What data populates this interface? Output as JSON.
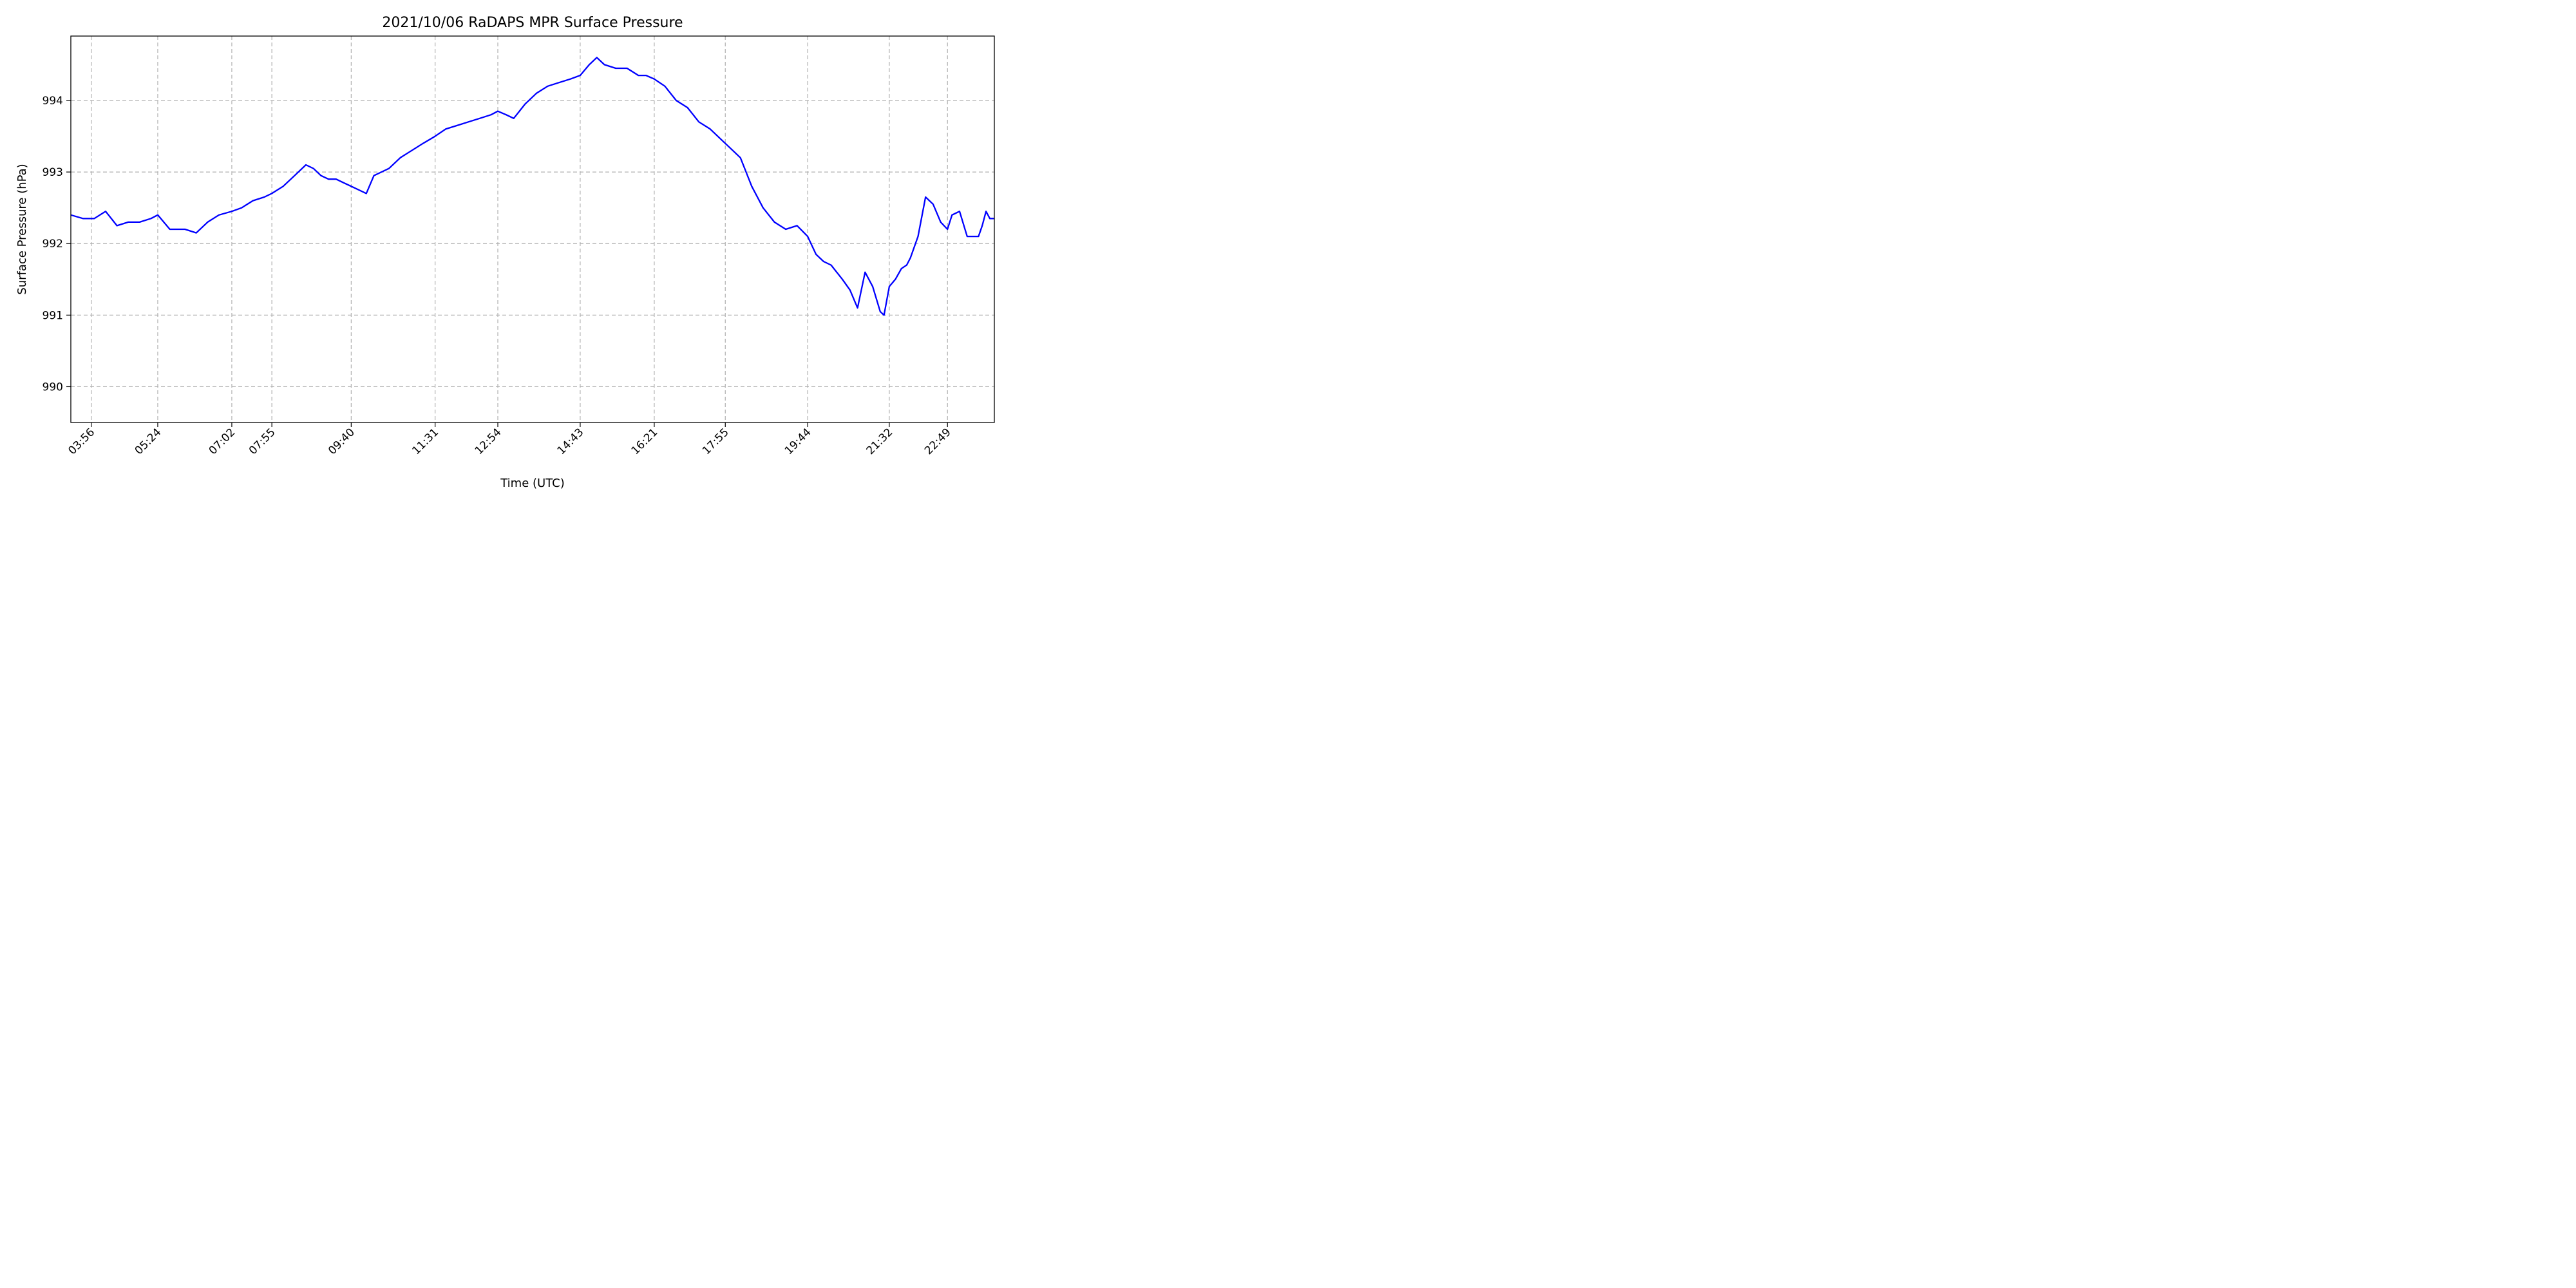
{
  "colors": {
    "line": "#0000ff",
    "grid": "#b0b0b0",
    "axes": "#000000",
    "background": "#ffffff"
  },
  "chart_data": {
    "type": "line",
    "title": "2021/10/06 RaDAPS MPR Surface Pressure",
    "xlabel": "Time (UTC)",
    "ylabel": "Surface Pressure (hPa)",
    "xlim": [
      "03:29",
      "23:51"
    ],
    "ylim": [
      989.5,
      994.9
    ],
    "grid": true,
    "legend": "none",
    "x_tick_labels": [
      "03:56",
      "05:24",
      "07:02",
      "07:55",
      "09:40",
      "11:31",
      "12:54",
      "14:43",
      "16:21",
      "17:55",
      "19:44",
      "21:32",
      "22:49"
    ],
    "y_ticks": [
      990,
      991,
      992,
      993,
      994
    ],
    "series": [
      {
        "color": "#0000ff",
        "x": [
          "03:29",
          "03:45",
          "04:00",
          "04:15",
          "04:30",
          "04:45",
          "05:00",
          "05:15",
          "05:24",
          "05:40",
          "06:00",
          "06:15",
          "06:30",
          "06:45",
          "07:02",
          "07:15",
          "07:30",
          "07:45",
          "07:55",
          "08:10",
          "08:25",
          "08:40",
          "08:50",
          "09:00",
          "09:10",
          "09:20",
          "09:30",
          "09:40",
          "09:50",
          "10:00",
          "10:10",
          "10:20",
          "10:30",
          "10:45",
          "11:00",
          "11:15",
          "11:31",
          "11:45",
          "12:00",
          "12:15",
          "12:30",
          "12:45",
          "12:54",
          "13:05",
          "13:15",
          "13:30",
          "13:45",
          "14:00",
          "14:15",
          "14:30",
          "14:43",
          "14:55",
          "15:05",
          "15:15",
          "15:30",
          "15:45",
          "16:00",
          "16:10",
          "16:21",
          "16:35",
          "16:50",
          "17:05",
          "17:20",
          "17:35",
          "17:45",
          "17:55",
          "18:05",
          "18:15",
          "18:30",
          "18:45",
          "19:00",
          "19:15",
          "19:30",
          "19:44",
          "19:55",
          "20:05",
          "20:15",
          "20:30",
          "20:40",
          "20:50",
          "21:00",
          "21:10",
          "21:20",
          "21:25",
          "21:32",
          "21:40",
          "21:48",
          "21:55",
          "22:00",
          "22:10",
          "22:20",
          "22:30",
          "22:40",
          "22:49",
          "22:55",
          "23:05",
          "23:15",
          "23:25",
          "23:30",
          "23:35",
          "23:40",
          "23:45",
          "23:51"
        ],
        "y": [
          992.4,
          992.35,
          992.35,
          992.45,
          992.25,
          992.3,
          992.3,
          992.35,
          992.4,
          992.2,
          992.2,
          992.15,
          992.3,
          992.4,
          992.45,
          992.5,
          992.6,
          992.65,
          992.7,
          992.8,
          992.95,
          993.1,
          993.05,
          992.95,
          992.9,
          992.9,
          992.85,
          992.8,
          992.75,
          992.7,
          992.95,
          993.0,
          993.05,
          993.2,
          993.3,
          993.4,
          993.5,
          993.6,
          993.65,
          993.7,
          993.75,
          993.8,
          993.85,
          993.8,
          993.75,
          993.95,
          994.1,
          994.2,
          994.25,
          994.3,
          994.35,
          994.5,
          994.6,
          994.5,
          994.45,
          994.45,
          994.35,
          994.35,
          994.3,
          994.2,
          994.0,
          993.9,
          993.7,
          993.6,
          993.5,
          993.4,
          993.3,
          993.2,
          992.8,
          992.5,
          992.3,
          992.2,
          992.25,
          992.1,
          991.85,
          991.75,
          991.7,
          991.5,
          991.35,
          991.1,
          991.6,
          991.4,
          991.05,
          991.0,
          991.4,
          991.5,
          991.65,
          991.7,
          991.8,
          992.1,
          992.65,
          992.55,
          992.3,
          992.2,
          992.4,
          992.45,
          992.1,
          992.1,
          992.1,
          992.25,
          992.45,
          992.35,
          992.35
        ]
      }
    ]
  }
}
